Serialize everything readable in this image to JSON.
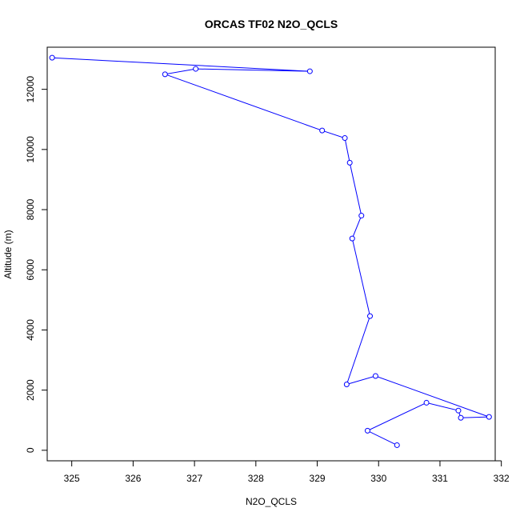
{
  "chart_data": {
    "type": "line",
    "title": "ORCAS TF02 N2O_QCLS",
    "xlabel": "N2O_QCLS",
    "ylabel": "Altitude (m)",
    "xlim": [
      324.6,
      331.9
    ],
    "ylim": [
      -350,
      13400
    ],
    "xticks": [
      325,
      326,
      327,
      328,
      329,
      330,
      331,
      332
    ],
    "yticks": [
      0,
      2000,
      4000,
      6000,
      8000,
      10000,
      12000
    ],
    "grid": false,
    "legend": "none",
    "series_color": "#0000ff",
    "markers": "open-circle",
    "series": [
      {
        "x": [
          324.68,
          328.88,
          327.02,
          326.52,
          329.08,
          329.45,
          329.53,
          329.72,
          329.57,
          329.86,
          329.48,
          329.95,
          331.8,
          331.34,
          331.3,
          330.78,
          329.82,
          330.3
        ],
        "y": [
          13050,
          12600,
          12680,
          12500,
          10630,
          10380,
          9560,
          7800,
          7040,
          4460,
          2190,
          2470,
          1110,
          1080,
          1320,
          1580,
          650,
          170
        ]
      }
    ]
  }
}
